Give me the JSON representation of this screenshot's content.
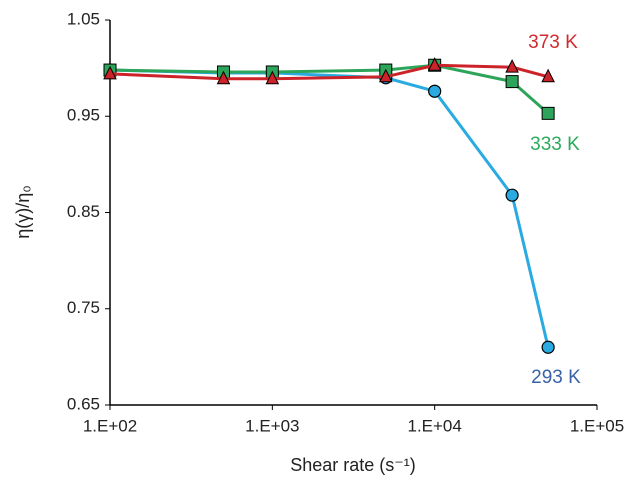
{
  "chart_data": {
    "type": "line",
    "log_x": true,
    "x_label": "Shear rate (s⁻¹)",
    "y_label": "η(γ)/η₀",
    "x": [
      100,
      500,
      1000,
      5000,
      10000,
      30000,
      50000
    ],
    "xlim": [
      100,
      100000
    ],
    "xticks": [
      {
        "value": 100,
        "label": "1.E+02"
      },
      {
        "value": 1000,
        "label": "1.E+03"
      },
      {
        "value": 10000,
        "label": "1.E+04"
      },
      {
        "value": 100000,
        "label": "1.E+05"
      }
    ],
    "ylim": [
      0.65,
      1.05
    ],
    "yticks": [
      0.65,
      0.75,
      0.85,
      0.95,
      1.05
    ],
    "grid": false,
    "series": [
      {
        "name": "293 K",
        "color": "#29abe2",
        "label_color": "#3a62a8",
        "marker": "circle",
        "values": [
          0.998,
          0.995,
          0.995,
          0.99,
          0.976,
          0.868,
          0.71
        ]
      },
      {
        "name": "333 K",
        "color": "#2ca55a",
        "label_color": "#2aab5c",
        "marker": "square",
        "values": [
          0.998,
          0.996,
          0.996,
          0.998,
          1.003,
          0.986,
          0.953
        ]
      },
      {
        "name": "373 K",
        "color": "#cc2229",
        "label_color": "#d02a2f",
        "marker": "triangle",
        "values": [
          0.994,
          0.989,
          0.989,
          0.991,
          1.003,
          1.001,
          0.991
        ]
      }
    ]
  }
}
